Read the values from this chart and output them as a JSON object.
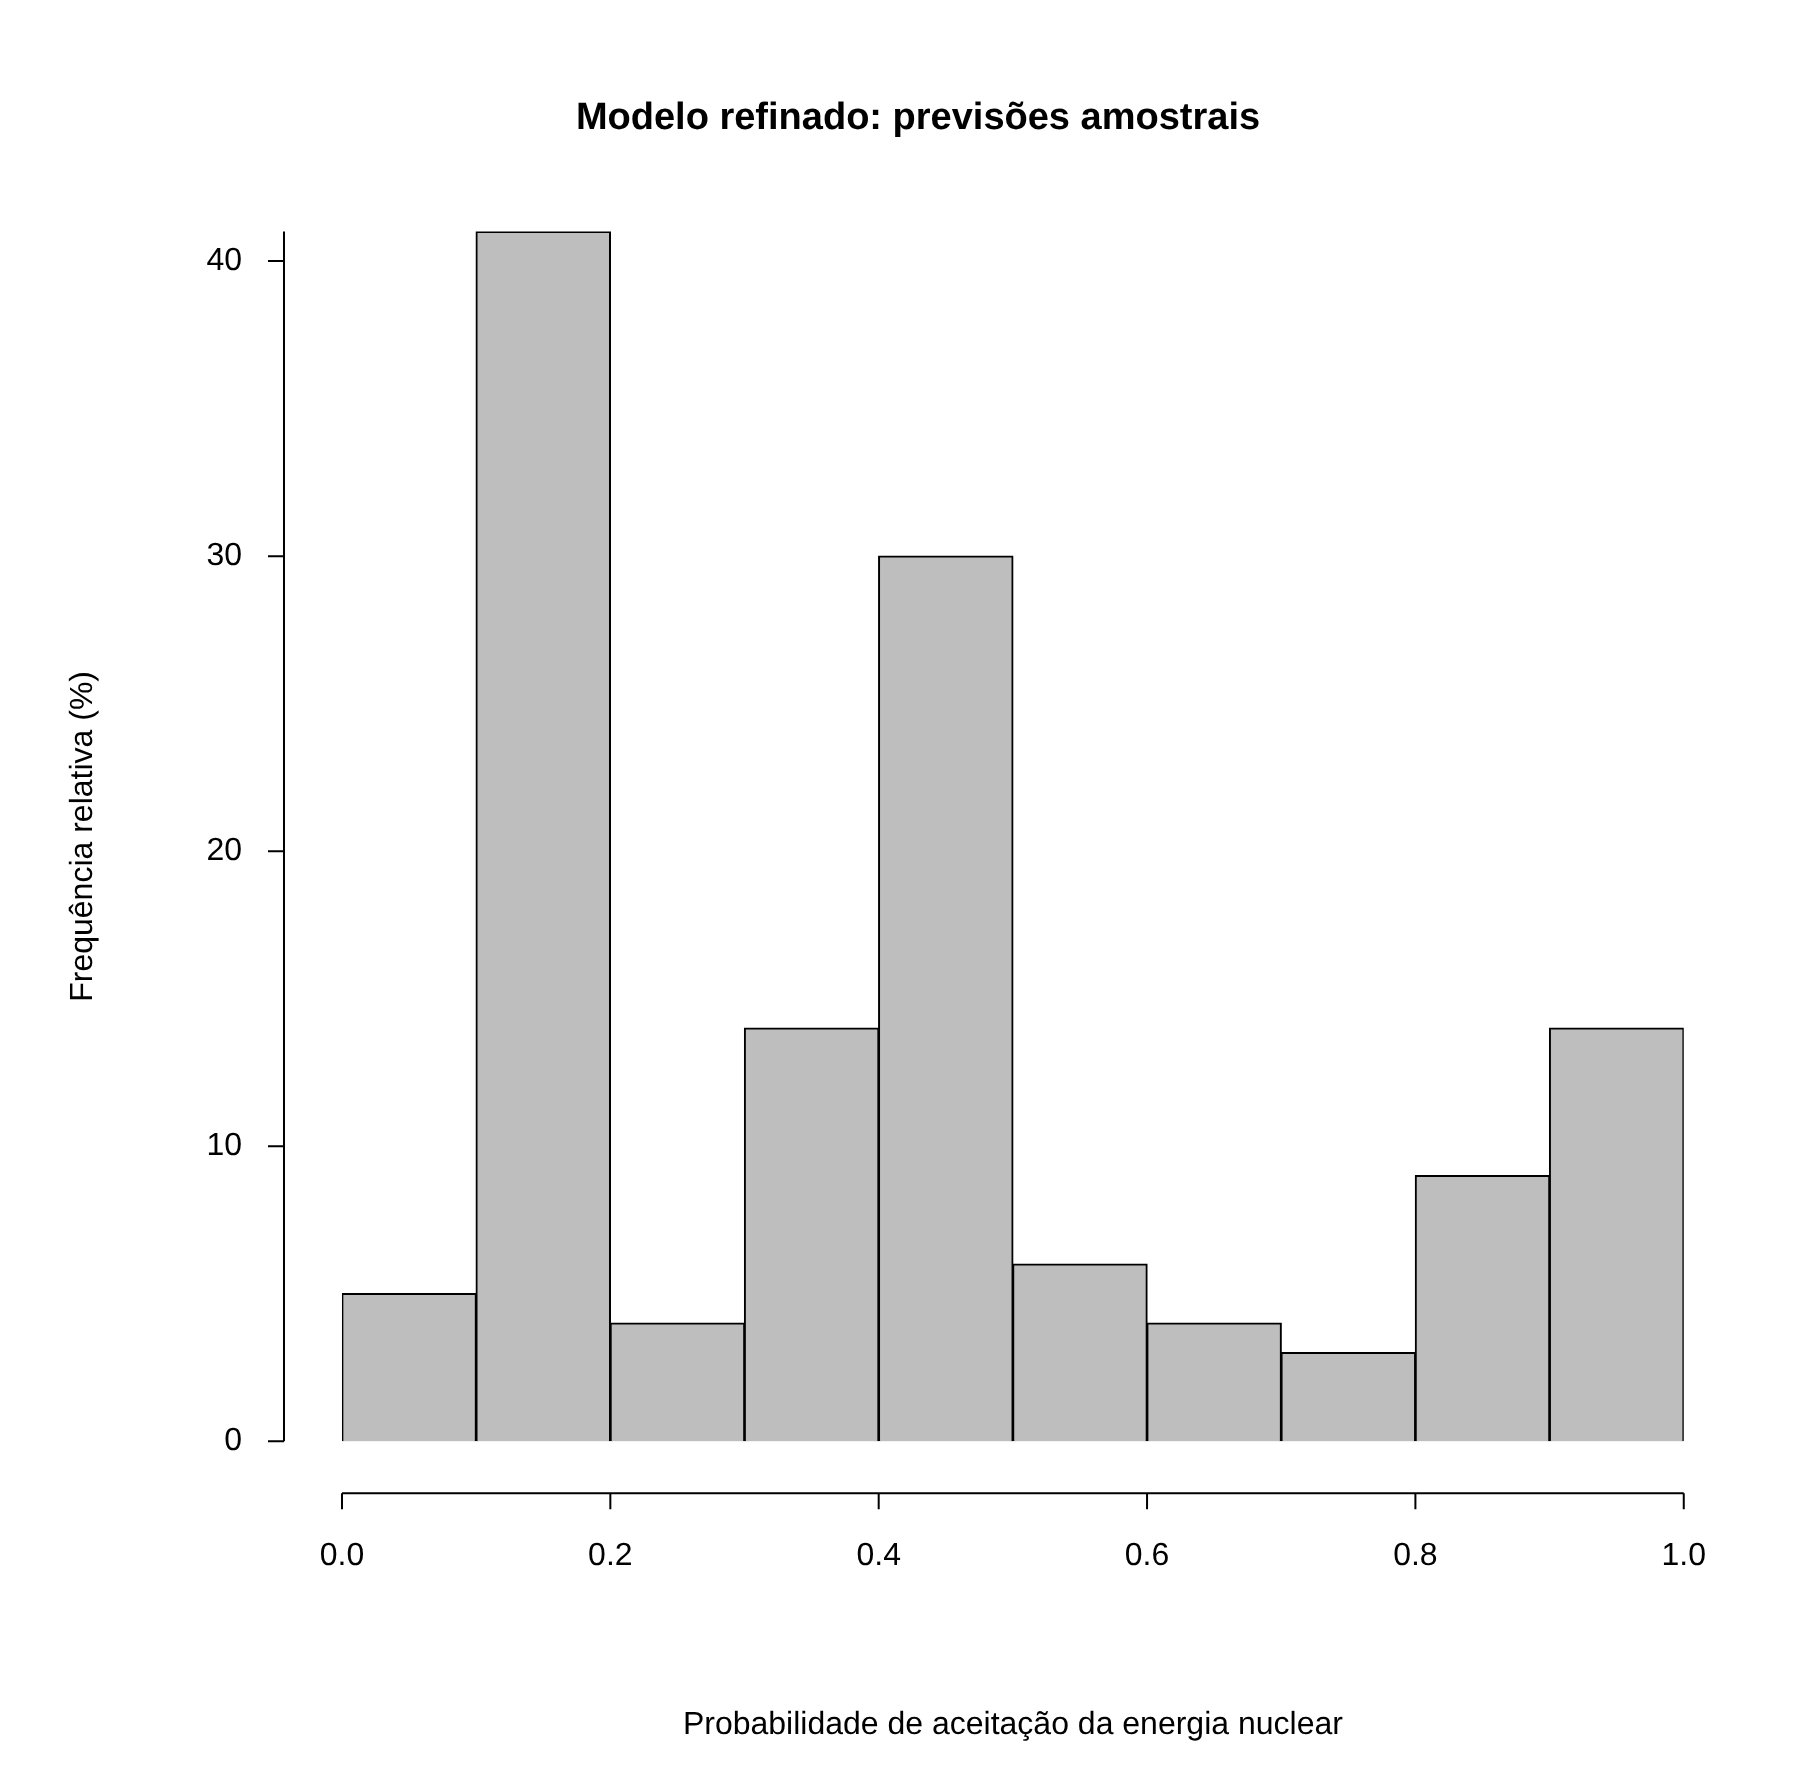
{
  "chart_data": {
    "type": "histogram",
    "title": "Modelo refinado: previsões amostrais",
    "xlabel": "Probabilidade de aceitação da energia nuclear",
    "ylabel": "Frequência relativa (%)",
    "bins": [
      0,
      0.1,
      0.2,
      0.3,
      0.4,
      0.5,
      0.6,
      0.7,
      0.8,
      0.9,
      1.0
    ],
    "values": [
      5,
      41,
      4,
      14,
      30,
      6,
      4,
      3,
      9,
      14
    ],
    "color": "#bebebe",
    "xlim": [
      0,
      1
    ],
    "ylim": [
      0,
      41
    ],
    "xticks": [
      {
        "value": 0,
        "label": "0.0"
      },
      {
        "value": 0.2,
        "label": "0.2"
      },
      {
        "value": 0.4,
        "label": "0.4"
      },
      {
        "value": 0.6,
        "label": "0.6"
      },
      {
        "value": 0.8,
        "label": "0.8"
      },
      {
        "value": 1,
        "label": "1.0"
      }
    ],
    "yticks": [
      0,
      10,
      20,
      30,
      40
    ]
  }
}
